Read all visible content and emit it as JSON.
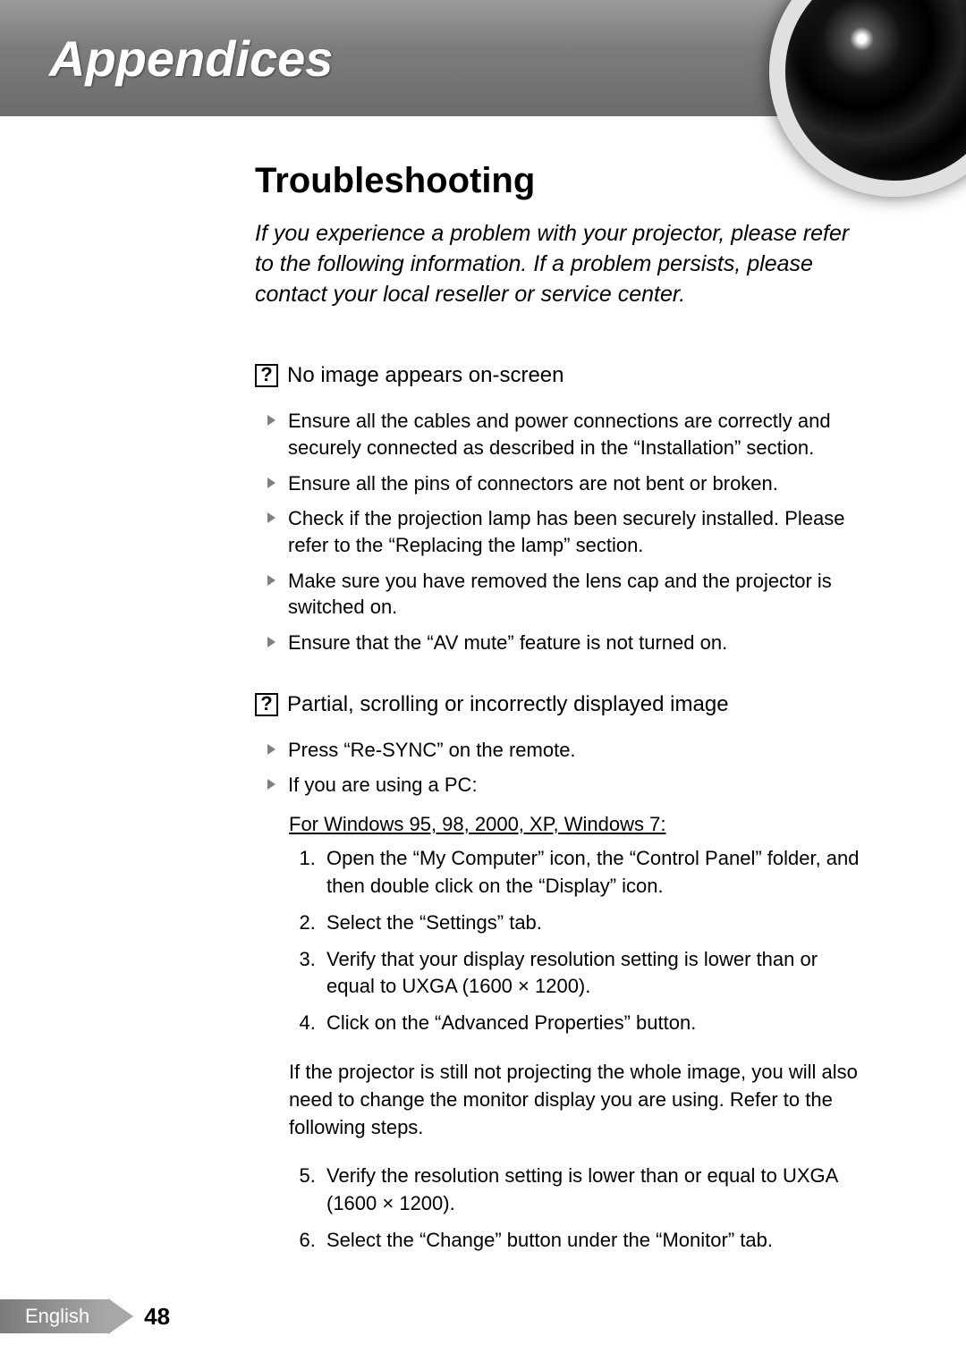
{
  "header": {
    "title": "Appendices",
    "title_color": "#ffffff",
    "band_gradient": [
      "#9a9a9a",
      "#6c6c6c"
    ]
  },
  "section": {
    "title": "Troubleshooting",
    "intro": "If you experience a problem with your projector, please refer to the following information. If a problem persists, please contact your local reseller or service center."
  },
  "issues": [
    {
      "heading": "No image appears on-screen",
      "bullets": [
        "Ensure all the cables and power connections are correctly and securely connected as described in the “Installation” section.",
        "Ensure all the pins of connectors are not bent or broken.",
        "Check if the projection lamp has been securely installed. Please refer to the “Replacing the lamp” section.",
        "Make sure you have removed the lens cap and the projector is switched on.",
        "Ensure that the “AV mute” feature is not turned on."
      ]
    },
    {
      "heading": "Partial, scrolling or incorrectly displayed image",
      "bullets": [
        "Press “Re-SYNC” on the remote.",
        "If you are using a PC:"
      ],
      "pc_heading": "For Windows 95, 98, 2000, XP, Windows 7:",
      "steps_a": [
        "Open the “My Computer” icon, the “Control Panel” folder, and then double click on the “Display” icon.",
        "Select the “Settings” tab.",
        "Verify that your display resolution setting is lower than or equal to UXGA (1600 × 1200).",
        "Click on the “Advanced Properties” button."
      ],
      "mid_para": "If the projector is still not projecting the whole image, you will also need to change the monitor display you are using. Refer to the following steps.",
      "steps_b": [
        "Verify the resolution setting is lower than or equal to UXGA (1600 × 1200).",
        "Select the “Change” button under the “Monitor” tab."
      ]
    }
  ],
  "footer": {
    "language": "English",
    "page": "48"
  },
  "colors": {
    "text": "#000000",
    "bullet_triangle": "#808080",
    "footer_bg": "#a8a8a8",
    "background": "#ffffff"
  },
  "typography": {
    "header_title_pt": 56,
    "section_title_pt": 40,
    "intro_pt": 25,
    "body_pt": 22
  }
}
